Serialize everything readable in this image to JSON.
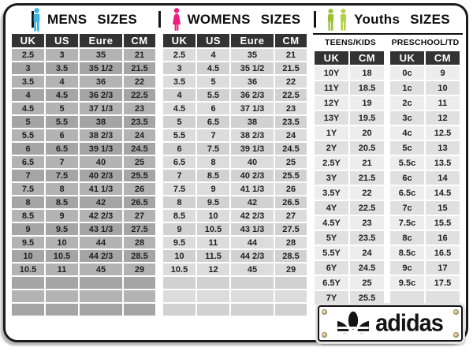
{
  "chart_data": [
    {
      "type": "table",
      "title": "MENS SIZES",
      "icon": "male-figure",
      "columns": [
        "UK",
        "US",
        "Eure",
        "CM"
      ],
      "rows": [
        [
          "2.5",
          "3",
          "35",
          "21"
        ],
        [
          "3",
          "3.5",
          "35 1/2",
          "21.5"
        ],
        [
          "3.5",
          "4",
          "36",
          "22"
        ],
        [
          "4",
          "4.5",
          "36 2/3",
          "22.5"
        ],
        [
          "4.5",
          "5",
          "37 1/3",
          "23"
        ],
        [
          "5",
          "5.5",
          "38",
          "23.5"
        ],
        [
          "5.5",
          "6",
          "38 2/3",
          "24"
        ],
        [
          "6",
          "6.5",
          "39 1/3",
          "24.5"
        ],
        [
          "6.5",
          "7",
          "40",
          "25"
        ],
        [
          "7",
          "7.5",
          "40 2/3",
          "25.5"
        ],
        [
          "7.5",
          "8",
          "41 1/3",
          "26"
        ],
        [
          "8",
          "8.5",
          "42",
          "26.5"
        ],
        [
          "8.5",
          "9",
          "42 2/3",
          "27"
        ],
        [
          "9",
          "9.5",
          "43 1/3",
          "27.5"
        ],
        [
          "9.5",
          "10",
          "44",
          "28"
        ],
        [
          "10",
          "10.5",
          "44 2/3",
          "28.5"
        ],
        [
          "10.5",
          "11",
          "45",
          "29"
        ]
      ],
      "trailing_empty_rows": 3
    },
    {
      "type": "table",
      "title": "WOMENS SIZES",
      "icon": "female-figure",
      "columns": [
        "UK",
        "US",
        "Eure",
        "CM"
      ],
      "rows": [
        [
          "2.5",
          "4",
          "35",
          "21"
        ],
        [
          "3",
          "4.5",
          "35 1/2",
          "21.5"
        ],
        [
          "3.5",
          "5",
          "36",
          "22"
        ],
        [
          "4",
          "5.5",
          "36 2/3",
          "22.5"
        ],
        [
          "4.5",
          "6",
          "37 1/3",
          "23"
        ],
        [
          "5",
          "6.5",
          "38",
          "23.5"
        ],
        [
          "5.5",
          "7",
          "38 2/3",
          "24"
        ],
        [
          "6",
          "7.5",
          "39 1/3",
          "24.5"
        ],
        [
          "6.5",
          "8",
          "40",
          "25"
        ],
        [
          "7",
          "8.5",
          "40 2/3",
          "25.5"
        ],
        [
          "7.5",
          "9",
          "41 1/3",
          "26"
        ],
        [
          "8",
          "9.5",
          "42",
          "26.5"
        ],
        [
          "8.5",
          "10",
          "42 2/3",
          "27"
        ],
        [
          "9",
          "10.5",
          "43 1/3",
          "27.5"
        ],
        [
          "9.5",
          "11",
          "44",
          "28"
        ],
        [
          "10",
          "11.5",
          "44 2/3",
          "28.5"
        ],
        [
          "10.5",
          "12",
          "45",
          "29"
        ]
      ],
      "trailing_empty_rows": 3
    },
    {
      "type": "table",
      "title": "Youths SIZES",
      "icon": "two-kids-figures",
      "groups": [
        {
          "label": "TEENS/KIDS",
          "columns": [
            "UK",
            "CM"
          ],
          "rows": [
            [
              "10Y",
              "18"
            ],
            [
              "11Y",
              "18.5"
            ],
            [
              "12Y",
              "19"
            ],
            [
              "13Y",
              "19.5"
            ],
            [
              "1Y",
              "20"
            ],
            [
              "2Y",
              "20.5"
            ],
            [
              "2.5Y",
              "21"
            ],
            [
              "3Y",
              "21.5"
            ],
            [
              "3.5Y",
              "22"
            ],
            [
              "4Y",
              "22.5"
            ],
            [
              "4.5Y",
              "23"
            ],
            [
              "5Y",
              "23.5"
            ],
            [
              "5.5Y",
              "24"
            ],
            [
              "6Y",
              "24.5"
            ],
            [
              "6.5Y",
              "25"
            ],
            [
              "7Y",
              "25.5"
            ]
          ],
          "trailing_empty_rows": 0
        },
        {
          "label": "PRESCHOOL/TD",
          "columns": [
            "UK",
            "CM"
          ],
          "rows": [
            [
              "0c",
              "9"
            ],
            [
              "1c",
              "10"
            ],
            [
              "2c",
              "11"
            ],
            [
              "3c",
              "12"
            ],
            [
              "4c",
              "12.5"
            ],
            [
              "5c",
              "13"
            ],
            [
              "5.5c",
              "13.5"
            ],
            [
              "6c",
              "14"
            ],
            [
              "6.5c",
              "14.5"
            ],
            [
              "7c",
              "15"
            ],
            [
              "7.5c",
              "15.5"
            ],
            [
              "8c",
              "16"
            ],
            [
              "8.5c",
              "16.5"
            ],
            [
              "9c",
              "17"
            ],
            [
              "9.5c",
              "17.5"
            ]
          ],
          "trailing_empty_rows": 1
        }
      ]
    }
  ],
  "logo": {
    "brand": "adidas",
    "icon": "adidas-trefoil"
  },
  "colors": {
    "mens_icon": "#3bb4e5",
    "womens_icon": "#ec1e7e",
    "youths_icon_dark": "#9cc236",
    "youths_icon_light": "#b3d243",
    "header_cell_bg": "#333333",
    "mens_cell_bg": "#acacac",
    "womens_cell_bg": "#d7d7d7",
    "youths_cell_bg": "#e8e8e8",
    "card_border": "#1a1a1a"
  }
}
